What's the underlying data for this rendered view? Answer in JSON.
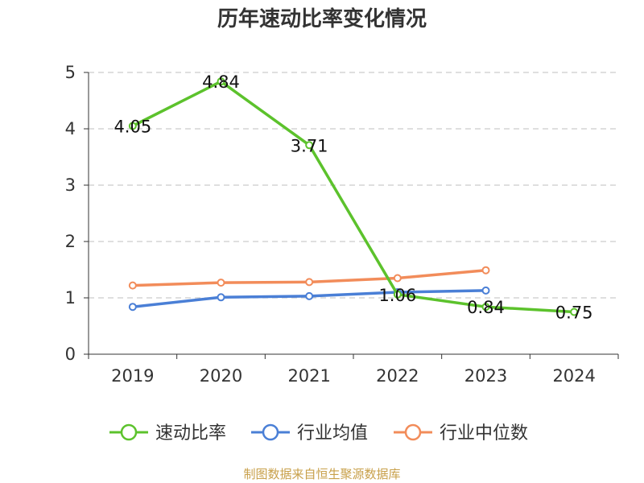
{
  "chart_data": {
    "type": "line",
    "title": "历年速动比率变化情况",
    "categories": [
      "2019",
      "2020",
      "2021",
      "2022",
      "2023",
      "2024"
    ],
    "y_ticks": [
      "0",
      "1",
      "2",
      "3",
      "4",
      "5"
    ],
    "ylim": [
      0,
      5
    ],
    "grid": true,
    "legend_position": "bottom",
    "series": [
      {
        "name": "速动比率",
        "color": "#5cc22c",
        "values": [
          4.05,
          4.84,
          3.71,
          1.06,
          0.84,
          0.75
        ],
        "labels": [
          "4.05",
          "4.84",
          "3.71",
          "1.06",
          "0.84",
          "0.75"
        ]
      },
      {
        "name": "行业均值",
        "color": "#4a7fd6",
        "values": [
          0.84,
          1.01,
          1.03,
          1.1,
          1.13,
          null
        ]
      },
      {
        "name": "行业中位数",
        "color": "#f28c5a",
        "values": [
          1.22,
          1.27,
          1.28,
          1.35,
          1.49,
          null
        ]
      }
    ]
  },
  "footer": "制图数据来自恒生聚源数据库"
}
